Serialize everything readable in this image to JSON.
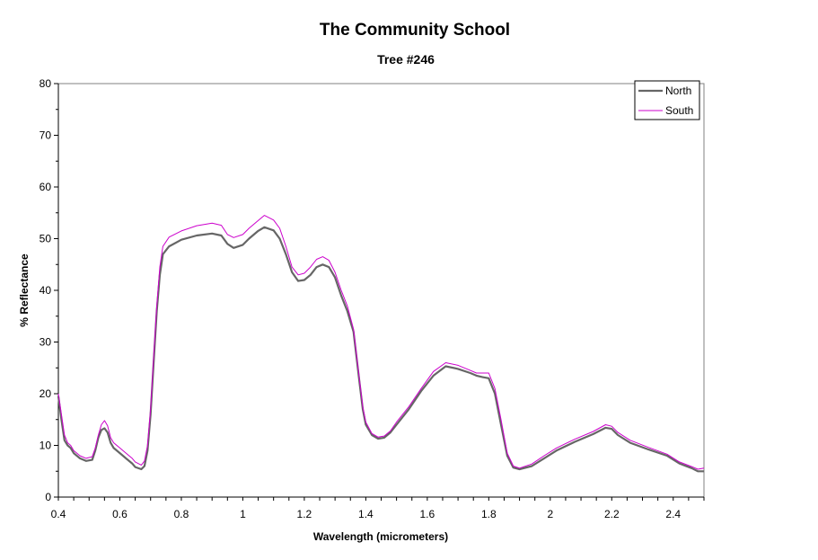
{
  "chart_data": {
    "type": "line",
    "title": "The Community School",
    "subtitle": "Tree #246",
    "xlabel": "Wavelength (micrometers)",
    "ylabel": "% Reflectance",
    "xlim": [
      0.4,
      2.5
    ],
    "ylim": [
      0,
      80
    ],
    "x_ticks": [
      "0.4",
      "0.6",
      "0.8",
      "1",
      "1.2",
      "1.4",
      "1.6",
      "1.8",
      "2",
      "2.2",
      "2.4"
    ],
    "y_ticks": [
      "0",
      "10",
      "20",
      "30",
      "40",
      "50",
      "60",
      "70",
      "80"
    ],
    "grid": false,
    "legend_position": "top-right",
    "colors": {
      "North": "#666666",
      "South": "#cc00cc"
    },
    "series": [
      {
        "name": "North",
        "points": [
          [
            0.4,
            19.5
          ],
          [
            0.41,
            15
          ],
          [
            0.42,
            11
          ],
          [
            0.43,
            10
          ],
          [
            0.44,
            9.5
          ],
          [
            0.45,
            8.5
          ],
          [
            0.47,
            7.5
          ],
          [
            0.49,
            7
          ],
          [
            0.51,
            7.2
          ],
          [
            0.52,
            9
          ],
          [
            0.53,
            11.5
          ],
          [
            0.54,
            13
          ],
          [
            0.55,
            13.3
          ],
          [
            0.56,
            12.5
          ],
          [
            0.57,
            10.5
          ],
          [
            0.58,
            9.5
          ],
          [
            0.6,
            8.5
          ],
          [
            0.62,
            7.5
          ],
          [
            0.64,
            6.5
          ],
          [
            0.65,
            5.8
          ],
          [
            0.67,
            5.4
          ],
          [
            0.68,
            6
          ],
          [
            0.69,
            9
          ],
          [
            0.7,
            16
          ],
          [
            0.71,
            26
          ],
          [
            0.72,
            36
          ],
          [
            0.73,
            43
          ],
          [
            0.74,
            47
          ],
          [
            0.76,
            48.5
          ],
          [
            0.8,
            49.8
          ],
          [
            0.85,
            50.6
          ],
          [
            0.9,
            51
          ],
          [
            0.93,
            50.6
          ],
          [
            0.95,
            49
          ],
          [
            0.97,
            48.2
          ],
          [
            1.0,
            48.8
          ],
          [
            1.02,
            50
          ],
          [
            1.05,
            51.5
          ],
          [
            1.07,
            52.2
          ],
          [
            1.1,
            51.6
          ],
          [
            1.12,
            50
          ],
          [
            1.14,
            47
          ],
          [
            1.16,
            43.5
          ],
          [
            1.18,
            41.8
          ],
          [
            1.2,
            42
          ],
          [
            1.22,
            43
          ],
          [
            1.24,
            44.5
          ],
          [
            1.26,
            45
          ],
          [
            1.28,
            44.5
          ],
          [
            1.3,
            42.5
          ],
          [
            1.32,
            39
          ],
          [
            1.34,
            36
          ],
          [
            1.36,
            32
          ],
          [
            1.37,
            27
          ],
          [
            1.38,
            22
          ],
          [
            1.39,
            17
          ],
          [
            1.4,
            14
          ],
          [
            1.42,
            12
          ],
          [
            1.44,
            11.3
          ],
          [
            1.46,
            11.5
          ],
          [
            1.48,
            12.5
          ],
          [
            1.5,
            14
          ],
          [
            1.54,
            17
          ],
          [
            1.58,
            20.5
          ],
          [
            1.62,
            23.5
          ],
          [
            1.66,
            25.3
          ],
          [
            1.7,
            24.8
          ],
          [
            1.74,
            24
          ],
          [
            1.76,
            23.5
          ],
          [
            1.78,
            23.2
          ],
          [
            1.8,
            23
          ],
          [
            1.82,
            20
          ],
          [
            1.84,
            14
          ],
          [
            1.86,
            8
          ],
          [
            1.88,
            5.7
          ],
          [
            1.9,
            5.4
          ],
          [
            1.94,
            6
          ],
          [
            1.98,
            7.5
          ],
          [
            2.02,
            9
          ],
          [
            2.08,
            10.7
          ],
          [
            2.14,
            12.2
          ],
          [
            2.18,
            13.4
          ],
          [
            2.2,
            13.2
          ],
          [
            2.22,
            12
          ],
          [
            2.26,
            10.5
          ],
          [
            2.32,
            9.2
          ],
          [
            2.38,
            8
          ],
          [
            2.42,
            6.5
          ],
          [
            2.46,
            5.6
          ],
          [
            2.48,
            5
          ],
          [
            2.5,
            5
          ]
        ]
      },
      {
        "name": "South",
        "points": [
          [
            0.4,
            20
          ],
          [
            0.41,
            16
          ],
          [
            0.42,
            12
          ],
          [
            0.43,
            10.5
          ],
          [
            0.44,
            10
          ],
          [
            0.45,
            9
          ],
          [
            0.47,
            8
          ],
          [
            0.49,
            7.5
          ],
          [
            0.51,
            7.8
          ],
          [
            0.52,
            9.5
          ],
          [
            0.53,
            12
          ],
          [
            0.54,
            14
          ],
          [
            0.55,
            14.8
          ],
          [
            0.56,
            13.8
          ],
          [
            0.57,
            11.5
          ],
          [
            0.58,
            10.5
          ],
          [
            0.6,
            9.5
          ],
          [
            0.62,
            8.5
          ],
          [
            0.64,
            7.5
          ],
          [
            0.65,
            6.8
          ],
          [
            0.67,
            6.2
          ],
          [
            0.68,
            7
          ],
          [
            0.69,
            10
          ],
          [
            0.7,
            17
          ],
          [
            0.71,
            27
          ],
          [
            0.72,
            37
          ],
          [
            0.73,
            44.5
          ],
          [
            0.74,
            48.5
          ],
          [
            0.76,
            50.3
          ],
          [
            0.8,
            51.5
          ],
          [
            0.85,
            52.5
          ],
          [
            0.9,
            53
          ],
          [
            0.93,
            52.6
          ],
          [
            0.95,
            50.8
          ],
          [
            0.97,
            50.2
          ],
          [
            1.0,
            50.8
          ],
          [
            1.02,
            52
          ],
          [
            1.05,
            53.5
          ],
          [
            1.07,
            54.5
          ],
          [
            1.1,
            53.6
          ],
          [
            1.12,
            52
          ],
          [
            1.14,
            48.5
          ],
          [
            1.16,
            44.5
          ],
          [
            1.18,
            43
          ],
          [
            1.2,
            43.3
          ],
          [
            1.22,
            44.5
          ],
          [
            1.24,
            46
          ],
          [
            1.26,
            46.5
          ],
          [
            1.28,
            45.8
          ],
          [
            1.3,
            43.5
          ],
          [
            1.32,
            40
          ],
          [
            1.34,
            37
          ],
          [
            1.36,
            32.5
          ],
          [
            1.37,
            27.5
          ],
          [
            1.38,
            22.5
          ],
          [
            1.39,
            17.5
          ],
          [
            1.4,
            14.5
          ],
          [
            1.42,
            12.3
          ],
          [
            1.44,
            11.6
          ],
          [
            1.46,
            11.8
          ],
          [
            1.48,
            12.8
          ],
          [
            1.5,
            14.5
          ],
          [
            1.54,
            17.5
          ],
          [
            1.58,
            21
          ],
          [
            1.62,
            24.3
          ],
          [
            1.66,
            26
          ],
          [
            1.7,
            25.5
          ],
          [
            1.74,
            24.5
          ],
          [
            1.76,
            24
          ],
          [
            1.78,
            24
          ],
          [
            1.8,
            24
          ],
          [
            1.82,
            21
          ],
          [
            1.84,
            15
          ],
          [
            1.86,
            8.5
          ],
          [
            1.88,
            6
          ],
          [
            1.9,
            5.6
          ],
          [
            1.94,
            6.4
          ],
          [
            1.98,
            8
          ],
          [
            2.02,
            9.5
          ],
          [
            2.08,
            11.2
          ],
          [
            2.14,
            12.7
          ],
          [
            2.18,
            14
          ],
          [
            2.2,
            13.7
          ],
          [
            2.22,
            12.5
          ],
          [
            2.26,
            11
          ],
          [
            2.32,
            9.6
          ],
          [
            2.38,
            8.3
          ],
          [
            2.42,
            6.8
          ],
          [
            2.46,
            5.9
          ],
          [
            2.48,
            5.4
          ],
          [
            2.5,
            5.6
          ]
        ]
      }
    ]
  }
}
